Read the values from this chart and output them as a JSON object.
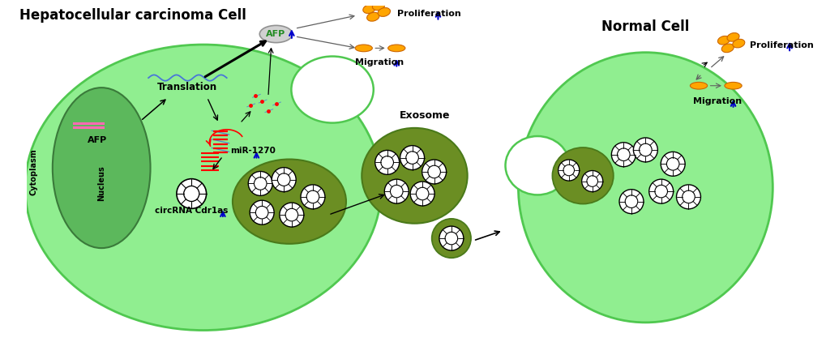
{
  "bg_color": "#ffffff",
  "light_green": "#90EE90",
  "cell_edge_green": "#50C850",
  "dark_blob_green": "#6B8E23",
  "dark_blob_edge": "#4A7A1A",
  "nucleus_fill": "#5CB85C",
  "nucleus_edge": "#3A7A3A",
  "orange_fill": "#FFA500",
  "orange_edge": "#CC6600",
  "title_hcc": "Hepatocellular carcinoma Cell",
  "title_normal": "Normal Cell",
  "label_cytoplasm": "Cytoplasm",
  "label_nucleus": "Nucleus",
  "label_translation": "Translation",
  "label_afp_box": "AFP",
  "label_afp_nucleus": "AFP",
  "label_mir": "miR-1270",
  "label_circrna": "circRNA Cdr1as",
  "label_exosome": "Exosome",
  "label_proliferation": "Proliferation",
  "label_migration": "Migration",
  "blue_arrow": "#0000CD",
  "gray_arrow": "#606060",
  "black_arrow": "#000000"
}
